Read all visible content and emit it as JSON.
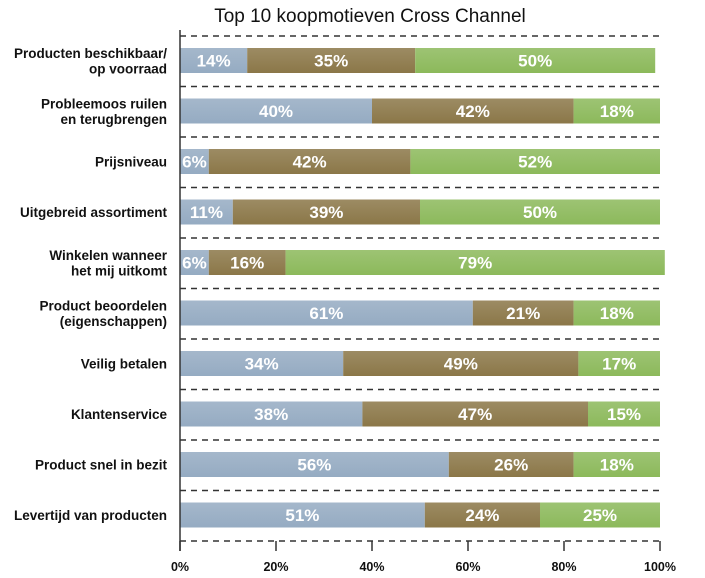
{
  "chart_data": {
    "type": "bar",
    "orientation": "horizontal",
    "stacked": true,
    "title": "Top 10 koopmotieven Cross Channel",
    "categories": [
      [
        "Producten beschikbaar/",
        "op voorraad"
      ],
      [
        "Probleemoos ruilen",
        "en terugbrengen"
      ],
      [
        "Prijsniveau"
      ],
      [
        "Uitgebreid assortiment"
      ],
      [
        "Winkelen wanneer",
        "het mij uitkomt"
      ],
      [
        "Product beoordelen",
        "(eigenschappen)"
      ],
      [
        "Veilig betalen"
      ],
      [
        "Klantenservice"
      ],
      [
        "Product snel in bezit"
      ],
      [
        "Levertijd van producten"
      ]
    ],
    "series": [
      {
        "color": "#95abc2",
        "values": [
          14,
          40,
          6,
          11,
          6,
          61,
          34,
          38,
          56,
          51
        ]
      },
      {
        "color": "#8b7748",
        "values": [
          35,
          42,
          42,
          39,
          16,
          21,
          49,
          47,
          26,
          24
        ]
      },
      {
        "color": "#8cb95b",
        "values": [
          50,
          18,
          52,
          50,
          79,
          18,
          17,
          15,
          18,
          25
        ]
      }
    ],
    "xlim": [
      0,
      100
    ],
    "x_ticks": [
      "0%",
      "20%",
      "40%",
      "60%",
      "80%",
      "100%"
    ],
    "value_suffix": "%",
    "grid": "dashed-horizontal"
  }
}
